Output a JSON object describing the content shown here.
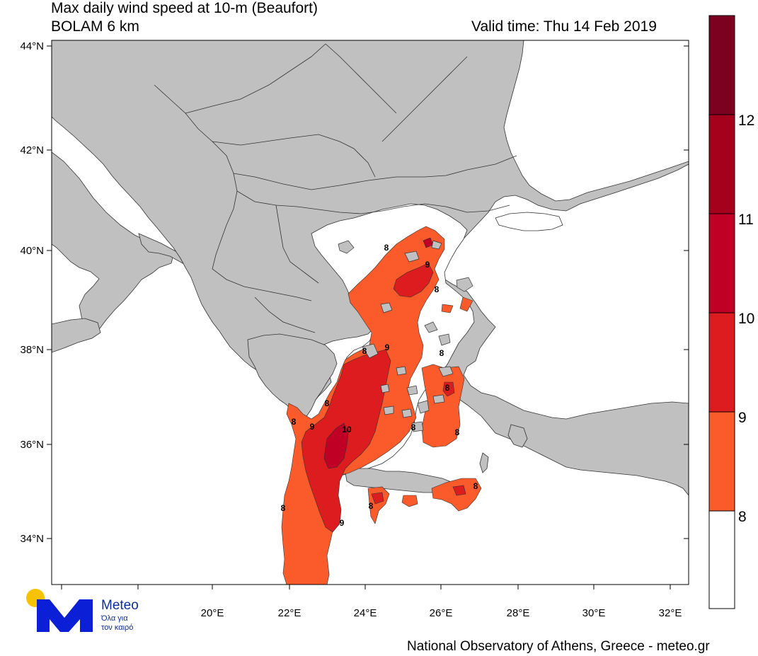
{
  "header": {
    "title_line1": "Max daily wind speed at 10-m (Beaufort)",
    "title_line2": "BOLAM 6 km",
    "valid_time": "Valid time: Thu 14 Feb 2019"
  },
  "axes": {
    "lat_labels": [
      "44°N",
      "42°N",
      "40°N",
      "38°N",
      "36°N",
      "34°N"
    ],
    "lon_labels": [
      "20°E",
      "22°E",
      "24°E",
      "26°E",
      "28°E",
      "30°E",
      "32°E"
    ]
  },
  "colorbar": {
    "labels": [
      "12",
      "11",
      "10",
      "9",
      "8"
    ],
    "colors": {
      "level_8_below": "#ffffff",
      "level_8_9": "#fb5a2a",
      "level_9_10": "#dc1c1f",
      "level_10_11": "#c00024",
      "level_11_12": "#a5001c",
      "level_12_plus": "#7c0020"
    }
  },
  "contour_labels": {
    "eight": "8",
    "nine": "9",
    "ten": "10"
  },
  "land_color": "#c0c0c0",
  "logo": {
    "name": "Meteo",
    "tagline_line1": "Όλα για",
    "tagline_line2": "τον καιρό",
    "brand_color": "#0a1fd6",
    "sun_color": "#f7c300"
  },
  "footer": {
    "credit": "National Observatory of Athens, Greece - meteo.gr"
  }
}
